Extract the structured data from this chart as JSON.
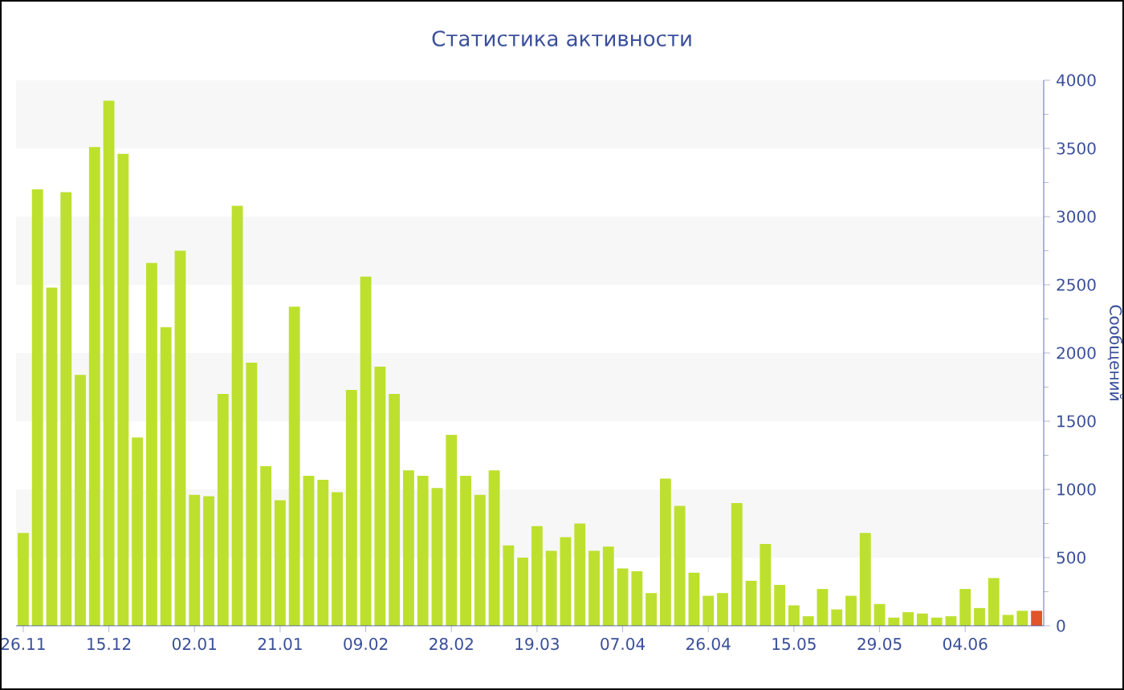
{
  "chart_data": {
    "type": "bar",
    "title": "Статистика активности",
    "ylabel": "Сообщений",
    "categories": [
      "26.11",
      null,
      null,
      null,
      null,
      null,
      "15.12",
      null,
      null,
      null,
      null,
      null,
      "02.01",
      null,
      null,
      null,
      null,
      null,
      "21.01",
      null,
      null,
      null,
      null,
      null,
      "09.02",
      null,
      null,
      null,
      null,
      null,
      "28.02",
      null,
      null,
      null,
      null,
      null,
      "19.03",
      null,
      null,
      null,
      null,
      null,
      "07.04",
      null,
      null,
      null,
      null,
      null,
      "26.04",
      null,
      null,
      null,
      null,
      null,
      "15.05",
      null,
      null,
      null,
      null,
      null,
      "29.05",
      null,
      null,
      null,
      null,
      null,
      "04.06",
      null,
      null,
      null,
      null,
      null
    ],
    "values": [
      680,
      3200,
      2480,
      3180,
      1840,
      3510,
      3850,
      3460,
      1380,
      2660,
      2190,
      2750,
      960,
      950,
      1700,
      3080,
      1930,
      1170,
      920,
      2340,
      1100,
      1070,
      980,
      1730,
      2560,
      1900,
      1700,
      1140,
      1100,
      1010,
      1400,
      1100,
      960,
      1140,
      590,
      500,
      730,
      550,
      650,
      750,
      550,
      580,
      420,
      400,
      240,
      1080,
      880,
      390,
      220,
      240,
      900,
      330,
      600,
      300,
      150,
      70,
      270,
      120,
      220,
      680,
      160,
      60,
      100,
      90,
      60,
      70,
      270,
      130,
      350,
      80,
      110,
      110
    ],
    "colors": [
      "#bde02f",
      "#bde02f",
      "#bde02f",
      "#bde02f",
      "#bde02f",
      "#bde02f",
      "#bde02f",
      "#bde02f",
      "#bde02f",
      "#bde02f",
      "#bde02f",
      "#bde02f",
      "#bde02f",
      "#bde02f",
      "#bde02f",
      "#bde02f",
      "#bde02f",
      "#bde02f",
      "#bde02f",
      "#bde02f",
      "#bde02f",
      "#bde02f",
      "#bde02f",
      "#bde02f",
      "#bde02f",
      "#bde02f",
      "#bde02f",
      "#bde02f",
      "#bde02f",
      "#bde02f",
      "#bde02f",
      "#bde02f",
      "#bde02f",
      "#bde02f",
      "#bde02f",
      "#bde02f",
      "#bde02f",
      "#bde02f",
      "#bde02f",
      "#bde02f",
      "#bde02f",
      "#bde02f",
      "#bde02f",
      "#bde02f",
      "#bde02f",
      "#bde02f",
      "#bde02f",
      "#bde02f",
      "#bde02f",
      "#bde02f",
      "#bde02f",
      "#bde02f",
      "#bde02f",
      "#bde02f",
      "#bde02f",
      "#bde02f",
      "#bde02f",
      "#bde02f",
      "#bde02f",
      "#bde02f",
      "#bde02f",
      "#bde02f",
      "#bde02f",
      "#bde02f",
      "#bde02f",
      "#bde02f",
      "#bde02f",
      "#bde02f",
      "#bde02f",
      "#bde02f",
      "#bde02f",
      "#e0552a"
    ],
    "ylim": [
      0,
      4000
    ],
    "yticks": [
      0,
      500,
      1000,
      1500,
      2000,
      2500,
      3000,
      3500,
      4000
    ],
    "bands": [
      {
        "axis": "y",
        "from": 500,
        "to": 1000,
        "color": "#f7f7f7"
      },
      {
        "axis": "y",
        "from": 1500,
        "to": 2000,
        "color": "#f7f7f7"
      },
      {
        "axis": "y",
        "from": 2500,
        "to": 3000,
        "color": "#f7f7f7"
      },
      {
        "axis": "y",
        "from": 3500,
        "to": 4000,
        "color": "#f7f7f7"
      }
    ],
    "grid": false
  }
}
